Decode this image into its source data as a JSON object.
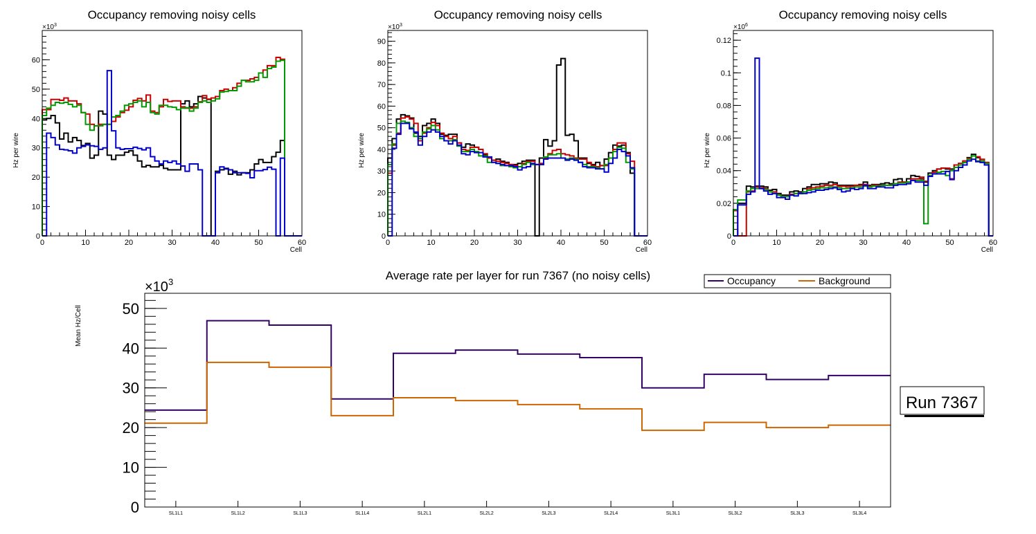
{
  "chart_data": [
    {
      "type": "line",
      "style": "histogram-step",
      "title": "Occupancy removing noisy cells",
      "xlabel": "Cell",
      "ylabel": "Hz per wire",
      "y_multiplier": "×10",
      "y_multiplier_exp": "3",
      "xlim": [
        0,
        60
      ],
      "ylim": [
        0,
        70
      ],
      "x_ticks": [
        "0",
        "10",
        "20",
        "30",
        "40",
        "50",
        "60"
      ],
      "y_ticks": [
        0,
        10,
        20,
        30,
        40,
        50,
        60
      ],
      "y_tick_labels": [
        "0",
        "10",
        "20",
        "30",
        "40",
        "50",
        "60"
      ],
      "series": [
        {
          "name": "black",
          "color": "#000000",
          "values": [
            39.5,
            40,
            41,
            38.5,
            33,
            35,
            32,
            33.5,
            32.5,
            30.8,
            31.5,
            26.5,
            27.5,
            42.5,
            41.5,
            27.5,
            26,
            27.5,
            27.5,
            28.5,
            29,
            27.5,
            25.5,
            23.5,
            24,
            23.5,
            23.5,
            24,
            23,
            22.5,
            22.5,
            22.5,
            45,
            46,
            44,
            45,
            47.5,
            47,
            46.5,
            0,
            22,
            22.5,
            23,
            21,
            22,
            20.8,
            21.5,
            21.5,
            22.5,
            24.5,
            26,
            25,
            25,
            27,
            28.5,
            32.5,
            0,
            0,
            0,
            0
          ]
        },
        {
          "name": "red",
          "color": "#cc0000",
          "values": [
            43,
            43,
            46.5,
            46.5,
            46.2,
            47,
            46,
            46,
            45,
            42,
            41.5,
            38,
            37.5,
            38,
            38,
            38,
            39,
            40.5,
            42,
            42.8,
            44,
            46.2,
            46.8,
            46,
            48,
            42.5,
            42,
            44,
            46.5,
            45.8,
            46,
            46,
            44,
            43.5,
            43.5,
            44,
            45.7,
            47.8,
            46.6,
            47,
            47.5,
            49.5,
            50,
            49.5,
            50.5,
            52,
            53,
            53,
            53.5,
            54,
            55.5,
            56.5,
            58,
            58,
            60.8,
            60.2,
            0,
            0,
            0,
            0
          ]
        },
        {
          "name": "green",
          "color": "#009900",
          "values": [
            41,
            43.5,
            44.5,
            45.5,
            45.2,
            45.5,
            44.8,
            44,
            44.5,
            42,
            38,
            36,
            37.5,
            37.5,
            38,
            38,
            40.5,
            41,
            42.5,
            44.5,
            45,
            45.5,
            46,
            44,
            45.5,
            42,
            41.5,
            44.5,
            44.5,
            44,
            43.8,
            43,
            43.5,
            43.7,
            42.5,
            43.5,
            45.5,
            46,
            45.5,
            46,
            46.7,
            49,
            49.2,
            49.5,
            49.5,
            51,
            53,
            52.5,
            52.5,
            53,
            55.5,
            54,
            57,
            57.5,
            59.5,
            59.8,
            0,
            0,
            0,
            0
          ]
        },
        {
          "name": "blue",
          "color": "#0000cc",
          "values": [
            0,
            35,
            33.5,
            31,
            29.5,
            29.3,
            29,
            28.2,
            30,
            30.5,
            31,
            30.7,
            30.5,
            29.5,
            30,
            56.3,
            35.8,
            30,
            29.5,
            29.7,
            29.7,
            30.2,
            29.8,
            29.3,
            30,
            27,
            25.5,
            24.5,
            25.5,
            25,
            25.5,
            24.5,
            23.8,
            22,
            24.5,
            24.5,
            22.5,
            0,
            0,
            0,
            21.5,
            23.5,
            22.8,
            22.5,
            21.5,
            21.5,
            21.5,
            21.3,
            19.8,
            22.2,
            22.2,
            22.6,
            23.4,
            22.7,
            0,
            26.5,
            0,
            0,
            0,
            0
          ]
        }
      ]
    },
    {
      "type": "line",
      "style": "histogram-step",
      "title": "Occupancy removing noisy cells",
      "xlabel": "Cell",
      "ylabel": "Hz per wire",
      "y_multiplier": "×10",
      "y_multiplier_exp": "3",
      "xlim": [
        0,
        60
      ],
      "ylim": [
        0,
        95
      ],
      "x_ticks": [
        "0",
        "10",
        "20",
        "30",
        "40",
        "50",
        "60"
      ],
      "y_ticks": [
        0,
        10,
        20,
        30,
        40,
        50,
        60,
        70,
        80,
        90
      ],
      "y_tick_labels": [
        "0",
        "10",
        "20",
        "30",
        "40",
        "50",
        "60",
        "70",
        "80",
        "90"
      ],
      "series": [
        {
          "name": "black",
          "color": "#000000",
          "values": [
            36,
            45,
            54,
            56,
            55.5,
            54.5,
            47.5,
            46,
            51,
            52,
            54,
            52,
            47,
            46.5,
            47,
            47,
            43,
            41,
            42.5,
            42,
            41,
            40,
            37.5,
            36,
            35,
            35.5,
            34.5,
            34,
            33,
            33,
            33.5,
            34.5,
            35,
            35,
            0,
            36,
            44.5,
            41.5,
            44,
            79,
            82,
            46.5,
            47,
            44,
            36,
            36,
            33.5,
            33,
            34,
            32.5,
            35.5,
            38.5,
            42,
            41.5,
            42,
            38.5,
            29,
            0,
            0,
            0
          ]
        },
        {
          "name": "red",
          "color": "#cc0000",
          "values": [
            29,
            42,
            47.5,
            54.5,
            55,
            54,
            52,
            44,
            47.5,
            50,
            52.5,
            51,
            47.5,
            46,
            45,
            46,
            43,
            40,
            39.5,
            41,
            41,
            40,
            38,
            36,
            35,
            34.5,
            34,
            33.5,
            33,
            32.5,
            32,
            33.5,
            34.5,
            34.5,
            33,
            33.5,
            36,
            38,
            39.5,
            40,
            38,
            37.5,
            37,
            36,
            35.5,
            35.5,
            34,
            32.5,
            32,
            32.5,
            32.5,
            36,
            40,
            43,
            43,
            38,
            34.5,
            0,
            0,
            0
          ]
        },
        {
          "name": "green",
          "color": "#009900",
          "values": [
            33,
            42.5,
            52,
            53,
            52.5,
            50,
            46,
            45,
            48,
            49.5,
            51,
            49,
            45,
            44,
            44,
            44.5,
            41.5,
            39,
            39,
            40,
            39,
            37,
            37,
            34,
            34,
            33.5,
            32.5,
            32.5,
            32,
            31.5,
            32,
            33,
            34,
            33,
            33,
            33,
            36.5,
            37.5,
            37.5,
            38,
            36,
            35.5,
            36,
            35.5,
            34,
            33,
            32,
            32,
            31.5,
            31,
            33,
            36,
            39,
            41,
            40.5,
            34,
            31,
            0,
            0,
            0
          ]
        },
        {
          "name": "blue",
          "color": "#0000cc",
          "values": [
            0,
            40.5,
            47,
            52,
            52,
            49.5,
            48,
            42,
            46,
            48,
            49,
            48,
            46,
            44,
            42.5,
            44,
            42,
            38,
            37.5,
            39,
            38.5,
            38.5,
            36.5,
            36.5,
            34,
            33.5,
            33,
            32.5,
            32.5,
            32,
            30.5,
            31.5,
            32,
            33.5,
            33,
            33,
            35.5,
            36,
            36,
            36,
            36,
            35,
            35.5,
            35,
            34,
            32,
            31.5,
            31.5,
            31,
            31,
            29.5,
            33.5,
            36,
            40,
            39,
            37,
            31.5,
            0,
            0,
            0
          ]
        }
      ]
    },
    {
      "type": "line",
      "style": "histogram-step",
      "title": "Occupancy removing noisy cells",
      "xlabel": "Cell",
      "ylabel": "Hz per wire",
      "y_multiplier": "×10",
      "y_multiplier_exp": "6",
      "xlim": [
        0,
        60
      ],
      "ylim": [
        0,
        0.126
      ],
      "x_ticks": [
        "0",
        "10",
        "20",
        "30",
        "40",
        "50",
        "60"
      ],
      "y_ticks": [
        0,
        0.02,
        0.04,
        0.06,
        0.08,
        0.1,
        0.12
      ],
      "y_tick_labels": [
        "0",
        "0.02",
        "0.04",
        "0.06",
        "0.08",
        "0.1",
        "0.12"
      ],
      "series": [
        {
          "name": "black",
          "color": "#000000",
          "values": [
            0.016,
            0.02,
            0.02,
            0.0305,
            0.03,
            0.0305,
            0.0305,
            0.03,
            0.028,
            0.0285,
            0.026,
            0.025,
            0.025,
            0.027,
            0.0275,
            0.027,
            0.029,
            0.03,
            0.0315,
            0.0315,
            0.032,
            0.032,
            0.033,
            0.0325,
            0.031,
            0.031,
            0.031,
            0.031,
            0.031,
            0.0315,
            0.033,
            0.031,
            0.0315,
            0.0315,
            0.032,
            0.0325,
            0.032,
            0.0345,
            0.035,
            0.033,
            0.035,
            0.037,
            0.0365,
            0.035,
            0.033,
            0.0385,
            0.04,
            0.041,
            0.0415,
            0.041,
            0.041,
            0.0435,
            0.0435,
            0.045,
            0.048,
            0.05,
            0.048,
            0.046,
            0.045,
            0
          ]
        },
        {
          "name": "red",
          "color": "#cc0000",
          "values": [
            0.0155,
            0,
            0,
            0.027,
            0.0275,
            0.03,
            0.0295,
            0.029,
            0.027,
            0.027,
            0.025,
            0.024,
            0.024,
            0.0255,
            0.026,
            0.026,
            0.027,
            0.029,
            0.0295,
            0.03,
            0.0305,
            0.031,
            0.031,
            0.0315,
            0.0305,
            0.0305,
            0.03,
            0.0305,
            0.031,
            0.031,
            0.0315,
            0.0305,
            0.031,
            0.031,
            0.031,
            0.031,
            0.031,
            0.032,
            0.033,
            0.033,
            0.033,
            0.035,
            0.035,
            0.036,
            0.0335,
            0.037,
            0.039,
            0.041,
            0.0415,
            0.0415,
            0.035,
            0.0435,
            0.0445,
            0.046,
            0.0475,
            0.049,
            0.0485,
            0.047,
            0.045,
            0
          ]
        },
        {
          "name": "green",
          "color": "#009900",
          "values": [
            0.016,
            0.022,
            0.022,
            0.0275,
            0.029,
            0.029,
            0.029,
            0.0285,
            0.027,
            0.026,
            0.025,
            0.024,
            0.024,
            0.025,
            0.026,
            0.026,
            0.027,
            0.028,
            0.0285,
            0.029,
            0.0295,
            0.0295,
            0.03,
            0.03,
            0.0295,
            0.029,
            0.029,
            0.0295,
            0.03,
            0.03,
            0.0305,
            0.03,
            0.0305,
            0.0305,
            0.031,
            0.031,
            0.031,
            0.032,
            0.0325,
            0.0325,
            0.033,
            0.034,
            0.034,
            0.034,
            0.0075,
            0.037,
            0.038,
            0.039,
            0.0395,
            0.037,
            0.04,
            0.042,
            0.0435,
            0.045,
            0.047,
            0.049,
            0.046,
            0.046,
            0.0445,
            0
          ]
        },
        {
          "name": "blue",
          "color": "#0000cc",
          "values": [
            0,
            0.019,
            0.019,
            0.0255,
            0.027,
            0.109,
            0.029,
            0.0275,
            0.0255,
            0.026,
            0.0235,
            0.0235,
            0.0225,
            0.025,
            0.0245,
            0.026,
            0.026,
            0.0265,
            0.027,
            0.028,
            0.028,
            0.0285,
            0.029,
            0.0295,
            0.0285,
            0.027,
            0.0275,
            0.029,
            0.0285,
            0.029,
            0.031,
            0.029,
            0.029,
            0.03,
            0.03,
            0.0295,
            0.0295,
            0.031,
            0.0315,
            0.0315,
            0.032,
            0.034,
            0.033,
            0.033,
            0.031,
            0.0365,
            0.038,
            0.038,
            0.038,
            0.0395,
            0.0345,
            0.04,
            0.042,
            0.0435,
            0.046,
            0.047,
            0.0455,
            0.045,
            0.0435,
            0
          ]
        }
      ]
    },
    {
      "type": "line",
      "style": "histogram-step",
      "title": "Average rate per layer for run 7367 (no noisy cells)",
      "xlabel": "",
      "ylabel": "Mean Hz/Cell",
      "y_multiplier": "×10",
      "y_multiplier_exp": "3",
      "categories": [
        "SL1L1",
        "SL1L2",
        "SL1L3",
        "SL1L4",
        "SL2L1",
        "SL2L2",
        "SL2L3",
        "SL2L4",
        "SL3L1",
        "SL3L2",
        "SL3L3",
        "SL3L4"
      ],
      "ylim": [
        0,
        53.8
      ],
      "y_ticks": [
        0,
        10,
        20,
        30,
        40,
        50
      ],
      "y_tick_labels": [
        "0",
        "10",
        "20",
        "30",
        "40",
        "50"
      ],
      "legend": "top-right",
      "series": [
        {
          "name": "Occupancy",
          "color": "#330066",
          "values": [
            24.4,
            46.9,
            45.8,
            27.2,
            38.7,
            39.5,
            38.5,
            37.6,
            30.0,
            33.4,
            32.1,
            33.1
          ]
        },
        {
          "name": "Background",
          "color": "#cc6600",
          "values": [
            21.1,
            36.4,
            35.2,
            23.0,
            27.5,
            26.8,
            25.8,
            24.7,
            19.3,
            21.3,
            20.0,
            20.6
          ]
        }
      ]
    }
  ],
  "run_label": "Run 7367"
}
